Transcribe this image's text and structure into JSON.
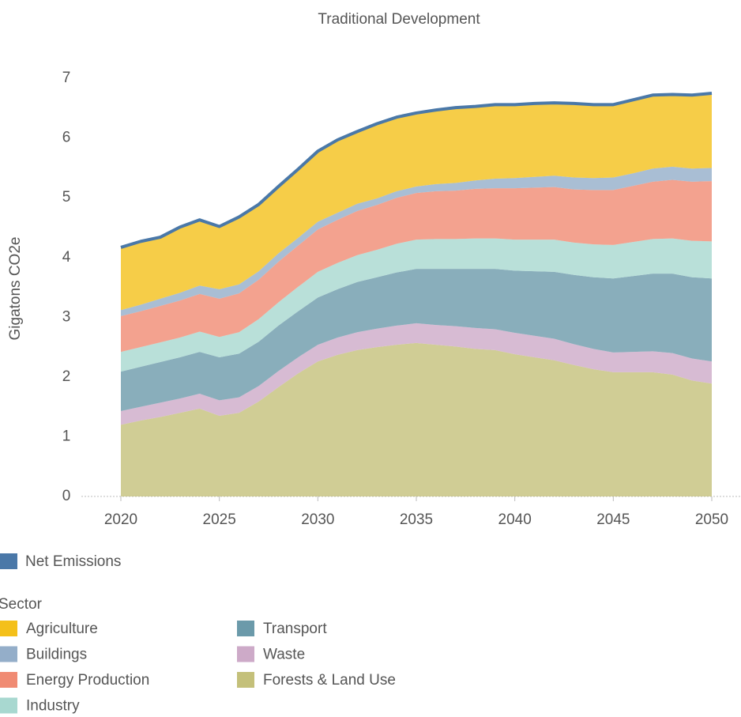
{
  "chart_data": {
    "type": "stacked_area",
    "title": "Traditional Development",
    "y_label": "Gigatons CO2e",
    "x": [
      2020,
      2021,
      2022,
      2023,
      2024,
      2025,
      2026,
      2027,
      2028,
      2029,
      2030,
      2031,
      2032,
      2033,
      2034,
      2035,
      2036,
      2037,
      2038,
      2039,
      2040,
      2041,
      2042,
      2043,
      2044,
      2045,
      2046,
      2047,
      2048,
      2049,
      2050
    ],
    "xlim": [
      2020,
      2050
    ],
    "xticks": [
      2020,
      2025,
      2030,
      2035,
      2040,
      2045,
      2050
    ],
    "ylim": [
      0,
      7.2
    ],
    "yticks": [
      0,
      1,
      2,
      3,
      4,
      5,
      6,
      7
    ],
    "legend_title": "Sector",
    "series": [
      {
        "name": "Agriculture",
        "color": "#f4c01a",
        "values": [
          1.05,
          1.06,
          1.03,
          1.1,
          1.1,
          1.05,
          1.13,
          1.12,
          1.12,
          1.15,
          1.18,
          1.22,
          1.21,
          1.25,
          1.24,
          1.23,
          1.24,
          1.26,
          1.24,
          1.24,
          1.23,
          1.23,
          1.22,
          1.24,
          1.23,
          1.22,
          1.23,
          1.23,
          1.21,
          1.23,
          1.25
        ]
      },
      {
        "name": "Buildings",
        "color": "#94aec9",
        "values": [
          0.1,
          0.11,
          0.12,
          0.13,
          0.14,
          0.16,
          0.15,
          0.14,
          0.14,
          0.13,
          0.13,
          0.12,
          0.12,
          0.11,
          0.11,
          0.11,
          0.12,
          0.13,
          0.14,
          0.16,
          0.17,
          0.18,
          0.19,
          0.2,
          0.2,
          0.21,
          0.21,
          0.22,
          0.22,
          0.22,
          0.22
        ]
      },
      {
        "name": "Energy Production",
        "color": "#f08b73",
        "values": [
          0.6,
          0.6,
          0.61,
          0.62,
          0.63,
          0.64,
          0.65,
          0.66,
          0.68,
          0.69,
          0.71,
          0.72,
          0.74,
          0.75,
          0.77,
          0.78,
          0.8,
          0.81,
          0.83,
          0.84,
          0.86,
          0.87,
          0.88,
          0.89,
          0.91,
          0.92,
          0.94,
          0.96,
          0.98,
          0.99,
          1.01
        ]
      },
      {
        "name": "Industry",
        "color": "#a8d8d0",
        "values": [
          0.33,
          0.33,
          0.33,
          0.33,
          0.34,
          0.34,
          0.36,
          0.38,
          0.39,
          0.41,
          0.43,
          0.44,
          0.45,
          0.46,
          0.48,
          0.49,
          0.5,
          0.5,
          0.51,
          0.51,
          0.52,
          0.53,
          0.54,
          0.54,
          0.55,
          0.56,
          0.57,
          0.58,
          0.59,
          0.61,
          0.62
        ]
      },
      {
        "name": "Transport",
        "color": "#6b9aaa",
        "values": [
          0.66,
          0.67,
          0.68,
          0.69,
          0.7,
          0.72,
          0.73,
          0.74,
          0.76,
          0.77,
          0.79,
          0.81,
          0.84,
          0.86,
          0.89,
          0.91,
          0.94,
          0.96,
          0.99,
          1.01,
          1.04,
          1.08,
          1.12,
          1.16,
          1.2,
          1.24,
          1.27,
          1.3,
          1.33,
          1.36,
          1.39
        ]
      },
      {
        "name": "Waste",
        "color": "#cdaac8",
        "values": [
          0.23,
          0.23,
          0.24,
          0.24,
          0.25,
          0.26,
          0.26,
          0.26,
          0.27,
          0.27,
          0.28,
          0.29,
          0.3,
          0.31,
          0.32,
          0.33,
          0.33,
          0.34,
          0.35,
          0.35,
          0.36,
          0.36,
          0.36,
          0.35,
          0.34,
          0.33,
          0.34,
          0.35,
          0.36,
          0.37,
          0.37
        ]
      },
      {
        "name": "Forests & Land Use",
        "color": "#c4c07a",
        "values": [
          1.2,
          1.27,
          1.33,
          1.4,
          1.47,
          1.35,
          1.4,
          1.59,
          1.83,
          2.06,
          2.26,
          2.37,
          2.45,
          2.5,
          2.54,
          2.57,
          2.54,
          2.51,
          2.47,
          2.45,
          2.38,
          2.33,
          2.28,
          2.2,
          2.13,
          2.08,
          2.08,
          2.08,
          2.04,
          1.94,
          1.89
        ]
      }
    ],
    "net_emissions": {
      "name": "Net Emissions",
      "color": "#4a78a8",
      "values": [
        4.17,
        4.27,
        4.34,
        4.51,
        4.63,
        4.52,
        4.68,
        4.89,
        5.19,
        5.48,
        5.78,
        5.97,
        6.11,
        6.24,
        6.35,
        6.42,
        6.47,
        6.51,
        6.53,
        6.56,
        6.56,
        6.58,
        6.59,
        6.58,
        6.56,
        6.56,
        6.64,
        6.72,
        6.73,
        6.72,
        6.75
      ]
    }
  }
}
